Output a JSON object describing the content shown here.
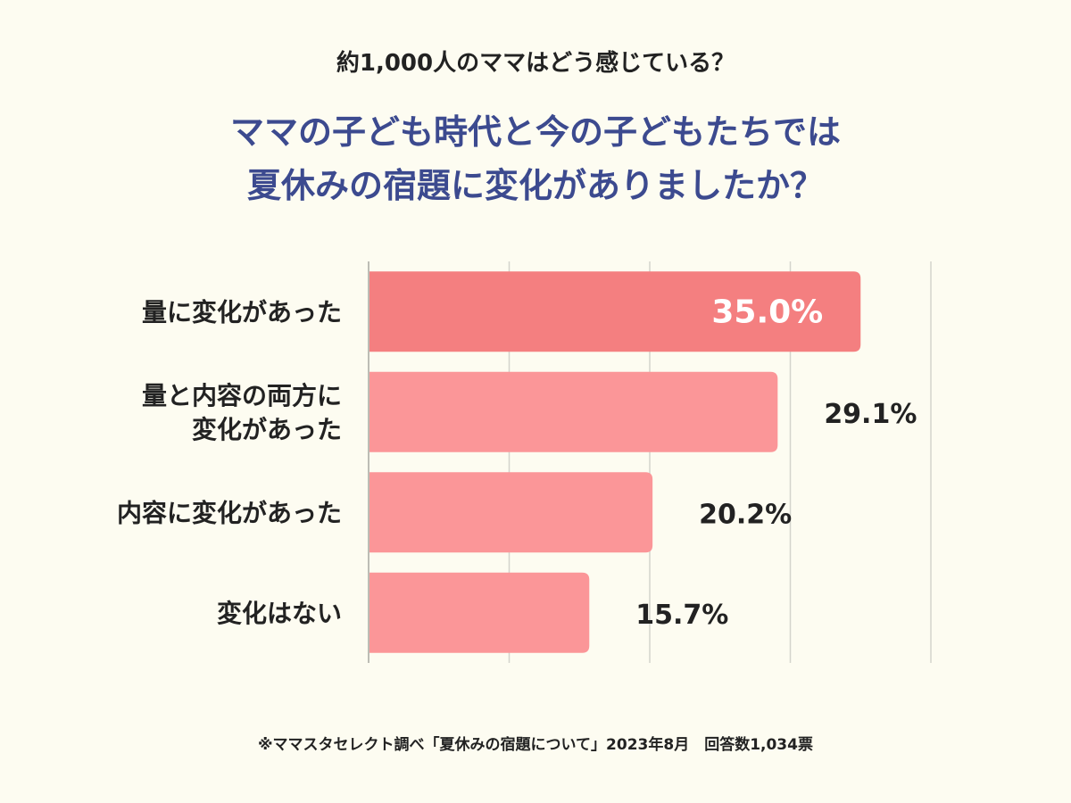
{
  "header": {
    "subtitle": "約1,000人のママはどう感じている？",
    "title_line1": "ママの子ども時代と今の子どもたちでは",
    "title_line2": "夏休みの宿題に変化がありましたか？"
  },
  "chart_data": {
    "type": "bar",
    "orientation": "horizontal",
    "categories": [
      [
        "量に変化があった"
      ],
      [
        "量と内容の両方に",
        "変化があった"
      ],
      [
        "内容に変化があった"
      ],
      [
        "変化はない"
      ]
    ],
    "values": [
      35.0,
      29.1,
      20.2,
      15.7
    ],
    "value_labels": [
      "35.0%",
      "29.1%",
      "20.2%",
      "15.7%"
    ],
    "xlim": [
      0,
      40
    ],
    "grid": true,
    "highlight_index": 0,
    "colors": {
      "highlight": "#f47f80",
      "bar": "#fb9698",
      "grid": "#d4d4cc",
      "axis": "#bdbdb5"
    }
  },
  "footer": {
    "note": "※ママスタセレクト調べ「夏休みの宿題について」2023年8月　回答数1,034票"
  }
}
